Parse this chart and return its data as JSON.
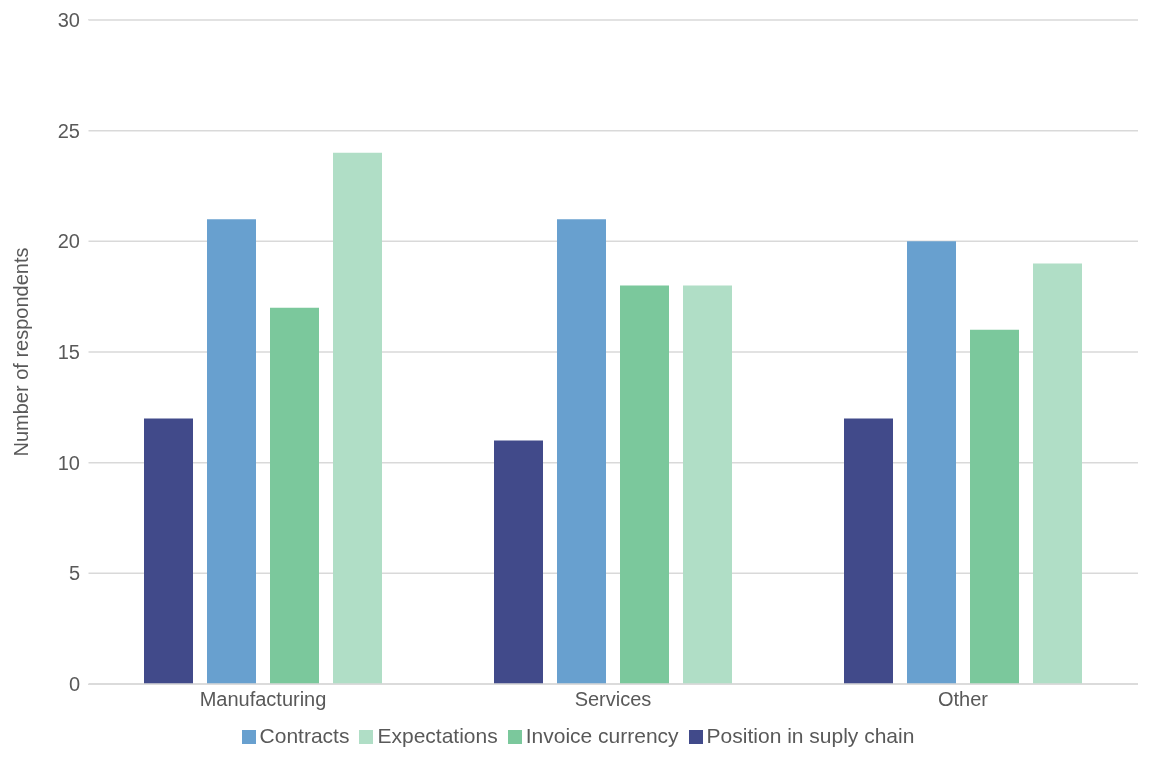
{
  "chart_data": {
    "type": "bar",
    "ylabel": "Number of respondents",
    "categories": [
      "Manufacturing",
      "Services",
      "Other"
    ],
    "series": [
      {
        "name": "Position in suply chain",
        "color": "#414a8a",
        "values": [
          12,
          11,
          12
        ]
      },
      {
        "name": "Contracts",
        "color": "#68a0cf",
        "values": [
          21,
          21,
          20
        ]
      },
      {
        "name": "Invoice currency",
        "color": "#7bc89c",
        "values": [
          17,
          18,
          16
        ]
      },
      {
        "name": "Expectations",
        "color": "#b0dec6",
        "values": [
          24,
          18,
          19
        ]
      }
    ],
    "ylim": [
      0,
      30
    ],
    "yticks": [
      0,
      5,
      10,
      15,
      20,
      25,
      30
    ],
    "grid": "y",
    "legend": "bottom"
  }
}
